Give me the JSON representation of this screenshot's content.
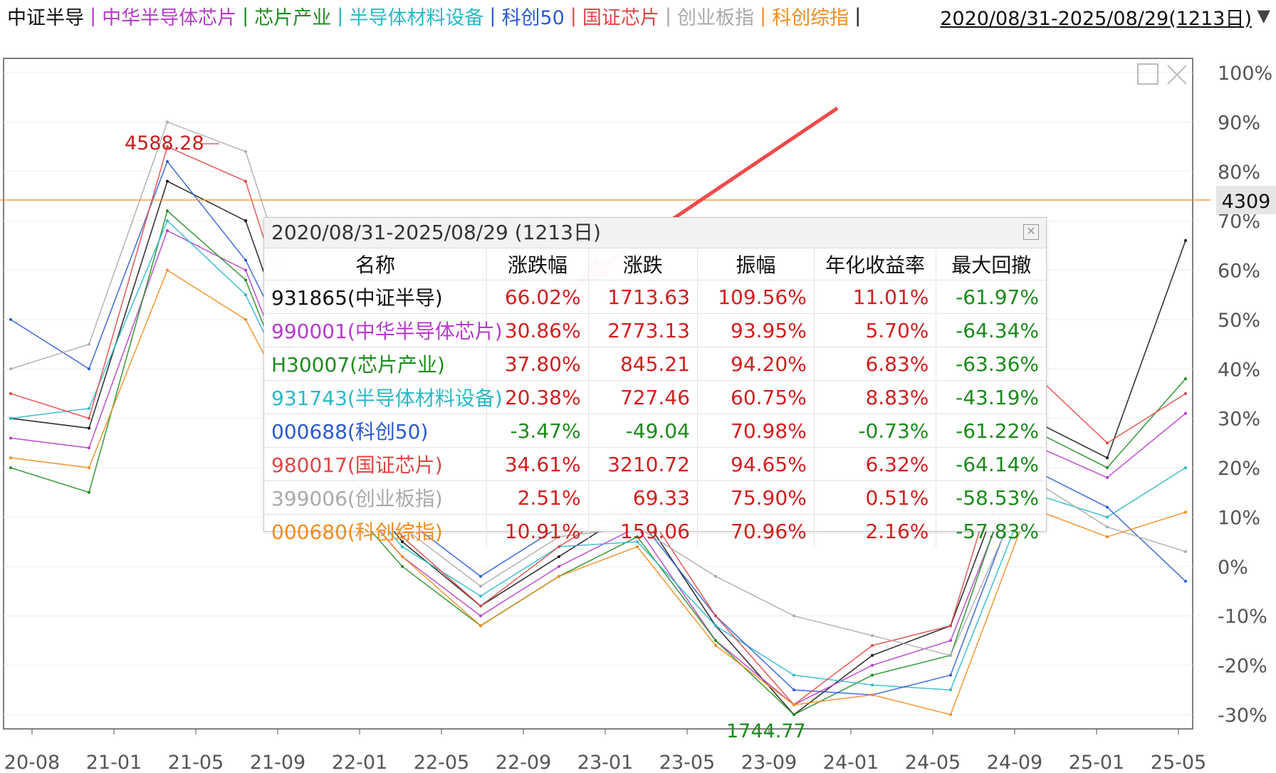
{
  "legend": [
    {
      "label": "中证半导",
      "color": "#111111"
    },
    {
      "label": "中华半导体芯片",
      "color": "#b43cc8"
    },
    {
      "label": "芯片产业",
      "color": "#1e8c1e"
    },
    {
      "label": "半导体材料设备",
      "color": "#2ab8c8"
    },
    {
      "label": "科创50",
      "color": "#2a5ad2"
    },
    {
      "label": "国证芯片",
      "color": "#e04646"
    },
    {
      "label": "创业板指",
      "color": "#aaaaaa"
    },
    {
      "label": "科创综指",
      "color": "#f08c1e"
    }
  ],
  "header": {
    "date_range": "2020/08/31-2025/08/29(1213日)"
  },
  "annotations": {
    "high": "4588.28",
    "low": "1744.77",
    "current": "4309"
  },
  "window_buttons": [
    "restore-icon",
    "close-icon"
  ],
  "popup": {
    "title": "2020/08/31-2025/08/29 (1213日)",
    "columns": [
      "名称",
      "涨跌幅",
      "涨跌",
      "振幅",
      "年化收益率",
      "最大回撤"
    ],
    "rows": [
      {
        "name": "931865(中证半导)",
        "color": "#111111",
        "change_pct": "66.02%",
        "change": "1713.63",
        "amplitude": "109.56%",
        "annual": "11.01%",
        "drawdown": "-61.97%"
      },
      {
        "name": "990001(中华半导体芯片)",
        "color": "#b43cc8",
        "change_pct": "30.86%",
        "change": "2773.13",
        "amplitude": "93.95%",
        "annual": "5.70%",
        "drawdown": "-64.34%"
      },
      {
        "name": "H30007(芯片产业)",
        "color": "#1e8c1e",
        "change_pct": "37.80%",
        "change": "845.21",
        "amplitude": "94.20%",
        "annual": "6.83%",
        "drawdown": "-63.36%"
      },
      {
        "name": "931743(半导体材料设备)",
        "color": "#2ab8c8",
        "change_pct": "20.38%",
        "change": "727.46",
        "amplitude": "60.75%",
        "annual": "8.83%",
        "drawdown": "-43.19%"
      },
      {
        "name": "000688(科创50)",
        "color": "#2a5ad2",
        "change_pct": "-3.47%",
        "change": "-49.04",
        "amplitude": "70.98%",
        "annual": "-0.73%",
        "drawdown": "-61.22%"
      },
      {
        "name": "980017(国证芯片)",
        "color": "#e04646",
        "change_pct": "34.61%",
        "change": "3210.72",
        "amplitude": "94.65%",
        "annual": "6.32%",
        "drawdown": "-64.14%"
      },
      {
        "name": "399006(创业板指)",
        "color": "#aaaaaa",
        "change_pct": "2.51%",
        "change": "69.33",
        "amplitude": "75.90%",
        "annual": "0.51%",
        "drawdown": "-58.53%"
      },
      {
        "name": "000680(科创综指)",
        "color": "#f08c1e",
        "change_pct": "10.91%",
        "change": "159.06",
        "amplitude": "70.96%",
        "annual": "2.16%",
        "drawdown": "-57.83%"
      }
    ]
  },
  "chart_data": {
    "type": "line",
    "x_ticks": [
      "20-08",
      "21-01",
      "21-05",
      "21-09",
      "22-01",
      "22-05",
      "22-09",
      "23-01",
      "23-05",
      "23-09",
      "24-01",
      "24-05",
      "24-09",
      "25-01",
      "25-05"
    ],
    "y_ticks": [
      "100%",
      "90%",
      "80%",
      "70%",
      "60%",
      "50%",
      "40%",
      "30%",
      "20%",
      "10%",
      "0%",
      "-10%",
      "-20%",
      "-30%"
    ],
    "ylim": [
      -30,
      100
    ],
    "series": [
      {
        "name": "中证半导",
        "color": "#111111",
        "values": [
          30,
          28,
          78,
          70,
          25,
          5,
          -8,
          2,
          12,
          -12,
          -30,
          -18,
          -12,
          30,
          22,
          66
        ]
      },
      {
        "name": "中华半导体芯片",
        "color": "#b43cc8",
        "values": [
          26,
          24,
          68,
          60,
          20,
          2,
          -10,
          0,
          8,
          -15,
          -28,
          -20,
          -15,
          25,
          18,
          31
        ]
      },
      {
        "name": "芯片产业",
        "color": "#1e8c1e",
        "values": [
          20,
          15,
          72,
          58,
          18,
          0,
          -12,
          -2,
          6,
          -15,
          -30,
          -22,
          -18,
          28,
          20,
          38
        ]
      },
      {
        "name": "半导体材料设备",
        "color": "#2ab8c8",
        "values": [
          30,
          32,
          70,
          55,
          22,
          4,
          -6,
          4,
          5,
          -12,
          -22,
          -24,
          -25,
          15,
          10,
          20
        ]
      },
      {
        "name": "科创50",
        "color": "#2a5ad2",
        "values": [
          50,
          40,
          82,
          62,
          30,
          10,
          -2,
          8,
          10,
          -10,
          -25,
          -26,
          -22,
          20,
          12,
          -3
        ]
      },
      {
        "name": "国证芯片",
        "color": "#e04646",
        "values": [
          35,
          30,
          85,
          78,
          28,
          6,
          -8,
          4,
          14,
          -10,
          -28,
          -16,
          -12,
          40,
          25,
          35
        ]
      },
      {
        "name": "创业板指",
        "color": "#aaaaaa",
        "values": [
          40,
          45,
          90,
          84,
          35,
          8,
          -4,
          6,
          8,
          -2,
          -10,
          -14,
          -18,
          18,
          8,
          3
        ]
      },
      {
        "name": "科创综指",
        "color": "#f08c1e",
        "values": [
          22,
          20,
          60,
          50,
          20,
          2,
          -12,
          -2,
          4,
          -16,
          -28,
          -26,
          -30,
          12,
          6,
          11
        ]
      }
    ]
  }
}
